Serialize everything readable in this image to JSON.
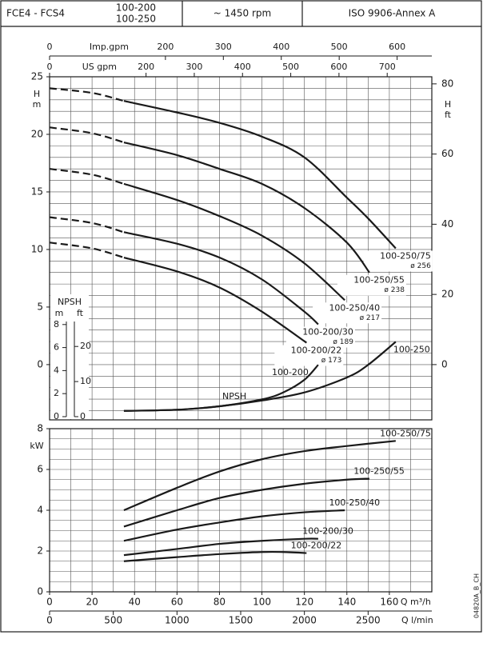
{
  "header": {
    "models": "FCE4 - FCS4",
    "variants": [
      "100-200",
      "100-250"
    ],
    "speed": "~ 1450 rpm",
    "standard": "ISO 9906-Annex A"
  },
  "side_code": "04820A_B_CH",
  "chart_data": [
    {
      "type": "line",
      "color": "#1a1a1a",
      "ylabel": [
        "H",
        "m"
      ],
      "y2label": [
        "H",
        "ft"
      ],
      "xlim": [
        0,
        180
      ],
      "xticks": [
        0,
        20,
        40,
        60,
        80,
        100,
        120,
        140,
        160
      ],
      "ylim": [
        -4.8,
        25
      ],
      "yticks": [
        0,
        5,
        10,
        15,
        20,
        25
      ],
      "y2lim": [
        -15.75,
        82.02
      ],
      "y2ticks": [
        0,
        20,
        40,
        60,
        80
      ],
      "y3label": "NPSH",
      "y3units": [
        "m",
        "ft"
      ],
      "y3lim": [
        -0.28,
        29.52
      ],
      "y3ticks": [
        0,
        2,
        4,
        6,
        8
      ],
      "y3ftlim": [
        -0.92,
        96.85
      ],
      "y3ftticks": [
        0,
        10,
        20
      ],
      "npsh_tag": "NPSH",
      "dashed_below_x": 35,
      "x2axes": [
        {
          "label": "Imp.gpm",
          "xlim": [
            0,
            659.9
          ],
          "xticks": [
            0,
            200,
            300,
            400,
            500,
            600
          ]
        },
        {
          "label": "US gpm",
          "xlim": [
            0,
            792.5
          ],
          "xticks": [
            0,
            200,
            300,
            400,
            500,
            600,
            700
          ]
        }
      ],
      "series": [
        {
          "name": "100-250/75",
          "impeller": "ø 256",
          "x": [
            0,
            20,
            35,
            60,
            80,
            100,
            120,
            140,
            150,
            163
          ],
          "values": [
            24.0,
            23.6,
            22.9,
            21.9,
            21.0,
            19.8,
            18.0,
            14.5,
            12.7,
            10.1
          ]
        },
        {
          "name": "100-250/55",
          "impeller": "ø 238",
          "x": [
            0,
            20,
            35,
            60,
            80,
            100,
            120,
            140,
            150.6
          ],
          "values": [
            20.6,
            20.1,
            19.3,
            18.2,
            17.0,
            15.7,
            13.6,
            10.6,
            8.0
          ]
        },
        {
          "name": "100-250/40",
          "impeller": "ø 217",
          "x": [
            0,
            20,
            35,
            60,
            80,
            100,
            120,
            139
          ],
          "values": [
            17.0,
            16.5,
            15.7,
            14.3,
            12.9,
            11.2,
            8.8,
            5.6
          ]
        },
        {
          "name": "100-200/30",
          "impeller": "ø 189",
          "x": [
            0,
            20,
            35,
            60,
            80,
            100,
            120,
            126.5
          ],
          "values": [
            12.8,
            12.3,
            11.5,
            10.5,
            9.3,
            7.4,
            4.6,
            3.5
          ]
        },
        {
          "name": "100-200/22",
          "impeller": "ø 173",
          "x": [
            0,
            20,
            35,
            60,
            80,
            100,
            121
          ],
          "values": [
            10.6,
            10.1,
            9.3,
            8.1,
            6.7,
            4.6,
            1.9
          ]
        },
        {
          "name": "100-250",
          "axis": "y3",
          "x": [
            35,
            60,
            80,
            100,
            120,
            140,
            150,
            163
          ],
          "values": [
            0.5,
            0.6,
            0.9,
            1.4,
            2.1,
            3.4,
            4.5,
            6.5
          ]
        },
        {
          "name": "100-200",
          "axis": "y3",
          "x": [
            35,
            60,
            80,
            100,
            110,
            120,
            126.5
          ],
          "values": [
            0.5,
            0.6,
            0.9,
            1.5,
            2.1,
            3.2,
            4.5
          ]
        }
      ]
    },
    {
      "type": "line",
      "color": "#1a1a1a",
      "ylabel": "kW",
      "xlabel": "Q  m³/h",
      "xlim": [
        0,
        180
      ],
      "xticks": [
        0,
        20,
        40,
        60,
        80,
        100,
        120,
        140,
        160
      ],
      "ylim": [
        0,
        8
      ],
      "yticks": [
        0,
        2,
        4,
        6,
        8
      ],
      "x2axes": [
        {
          "label": "Q  l/min",
          "xlim": [
            0,
            3000
          ],
          "xticks": [
            0,
            500,
            1000,
            1500,
            2000,
            2500
          ]
        }
      ],
      "series": [
        {
          "name": "100-250/75",
          "x": [
            35,
            60,
            80,
            100,
            120,
            140,
            163
          ],
          "values": [
            4.0,
            5.1,
            5.9,
            6.5,
            6.9,
            7.15,
            7.4
          ]
        },
        {
          "name": "100-250/55",
          "x": [
            35,
            60,
            80,
            100,
            120,
            140,
            150.6
          ],
          "values": [
            3.2,
            4.0,
            4.6,
            5.0,
            5.3,
            5.5,
            5.55
          ]
        },
        {
          "name": "100-250/40",
          "x": [
            35,
            60,
            80,
            100,
            120,
            139
          ],
          "values": [
            2.5,
            3.05,
            3.4,
            3.7,
            3.9,
            4.0
          ]
        },
        {
          "name": "100-200/30",
          "x": [
            35,
            60,
            80,
            100,
            120,
            126.5
          ],
          "values": [
            1.8,
            2.1,
            2.35,
            2.5,
            2.6,
            2.6
          ]
        },
        {
          "name": "100-200/22",
          "x": [
            35,
            60,
            80,
            100,
            110,
            121
          ],
          "values": [
            1.5,
            1.7,
            1.85,
            1.95,
            1.95,
            1.9
          ]
        }
      ]
    }
  ]
}
